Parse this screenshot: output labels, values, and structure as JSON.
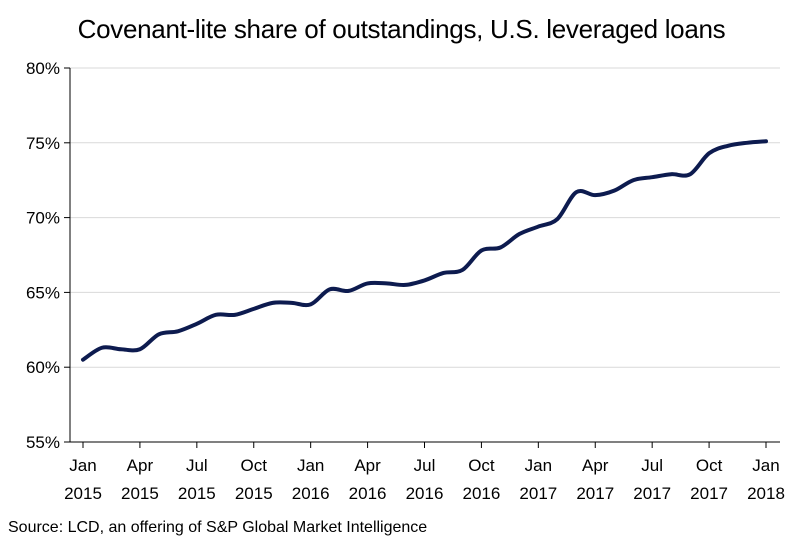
{
  "chart_data": {
    "type": "line",
    "title": "Covenant-lite share of outstandings, U.S. leveraged loans",
    "xlabel": "",
    "ylabel": "",
    "ylim": [
      55,
      80
    ],
    "yticks": [
      "55%",
      "60%",
      "65%",
      "70%",
      "75%",
      "80%"
    ],
    "ytick_values": [
      55,
      60,
      65,
      70,
      75,
      80
    ],
    "xticks": [
      {
        "month": "Jan",
        "year": "2015",
        "date": "2015-01"
      },
      {
        "month": "Apr",
        "year": "2015",
        "date": "2015-04"
      },
      {
        "month": "Jul",
        "year": "2015",
        "date": "2015-07"
      },
      {
        "month": "Oct",
        "year": "2015",
        "date": "2015-10"
      },
      {
        "month": "Jan",
        "year": "2016",
        "date": "2016-01"
      },
      {
        "month": "Apr",
        "year": "2016",
        "date": "2016-04"
      },
      {
        "month": "Jul",
        "year": "2016",
        "date": "2016-07"
      },
      {
        "month": "Oct",
        "year": "2016",
        "date": "2016-10"
      },
      {
        "month": "Jan",
        "year": "2017",
        "date": "2017-01"
      },
      {
        "month": "Apr",
        "year": "2017",
        "date": "2017-04"
      },
      {
        "month": "Jul",
        "year": "2017",
        "date": "2017-07"
      },
      {
        "month": "Oct",
        "year": "2017",
        "date": "2017-10"
      },
      {
        "month": "Jan",
        "year": "2018",
        "date": "2018-01"
      }
    ],
    "grid": true,
    "series": [
      {
        "color": "#0d1b4f",
        "x": [
          "2015-01",
          "2015-02",
          "2015-03",
          "2015-04",
          "2015-05",
          "2015-06",
          "2015-07",
          "2015-08",
          "2015-09",
          "2015-10",
          "2015-11",
          "2015-12",
          "2016-01",
          "2016-02",
          "2016-03",
          "2016-04",
          "2016-05",
          "2016-06",
          "2016-07",
          "2016-08",
          "2016-09",
          "2016-10",
          "2016-11",
          "2016-12",
          "2017-01",
          "2017-02",
          "2017-03",
          "2017-04",
          "2017-05",
          "2017-06",
          "2017-07",
          "2017-08",
          "2017-09",
          "2017-10",
          "2017-11",
          "2017-12",
          "2018-01"
        ],
        "values": [
          60.5,
          61.3,
          61.2,
          61.2,
          62.2,
          62.4,
          62.9,
          63.5,
          63.5,
          63.9,
          64.3,
          64.3,
          64.2,
          65.2,
          65.1,
          65.6,
          65.6,
          65.5,
          65.8,
          66.3,
          66.5,
          67.8,
          68.0,
          68.9,
          69.4,
          69.9,
          71.7,
          71.5,
          71.8,
          72.5,
          72.7,
          72.9,
          72.9,
          74.3,
          74.8,
          75.0,
          75.1
        ]
      }
    ]
  },
  "source": "Source: LCD, an offering of S&P Global Market Intelligence"
}
